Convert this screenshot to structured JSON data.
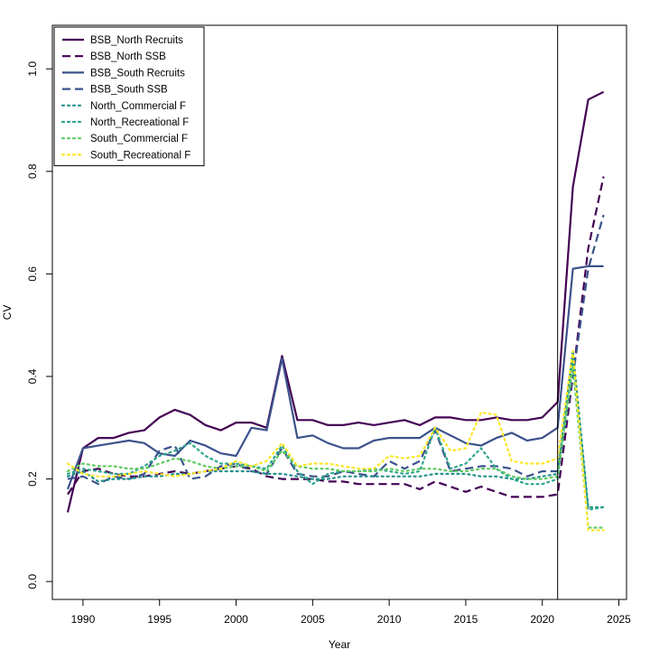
{
  "chart_data": {
    "type": "line",
    "title": "",
    "xlabel": "Year",
    "ylabel": "CV",
    "xlim": [
      1988,
      2025.5
    ],
    "ylim": [
      -0.035,
      1.085
    ],
    "xticks": [
      1990,
      1995,
      2000,
      2005,
      2010,
      2015,
      2020,
      2025
    ],
    "yticks": [
      0.0,
      0.2,
      0.4,
      0.6,
      0.8,
      1.0
    ],
    "ytick_labels": [
      "0.0",
      "0.2",
      "0.4",
      "0.6",
      "0.8",
      "1.0"
    ],
    "vline_x": 2021,
    "grid": false,
    "legend_position": "top-left",
    "x": [
      1989,
      1990,
      1991,
      1992,
      1993,
      1994,
      1995,
      1996,
      1997,
      1998,
      1999,
      2000,
      2001,
      2002,
      2003,
      2004,
      2005,
      2006,
      2007,
      2008,
      2009,
      2010,
      2011,
      2012,
      2013,
      2014,
      2015,
      2016,
      2017,
      2018,
      2019,
      2020,
      2021,
      2022,
      2023,
      2024
    ],
    "series": [
      {
        "name": "BSB_North Recruits",
        "color": "#440154",
        "dash": "solid",
        "values": [
          0.135,
          0.26,
          0.28,
          0.28,
          0.29,
          0.295,
          0.32,
          0.335,
          0.325,
          0.305,
          0.295,
          0.31,
          0.31,
          0.3,
          0.44,
          0.315,
          0.315,
          0.305,
          0.305,
          0.31,
          0.305,
          0.31,
          0.315,
          0.305,
          0.32,
          0.32,
          0.315,
          0.315,
          0.32,
          0.315,
          0.315,
          0.32,
          0.35,
          0.77,
          0.94,
          0.955
        ]
      },
      {
        "name": "BSB_North SSB",
        "color": "#440154",
        "dash": "dashed",
        "values": [
          0.17,
          0.215,
          0.22,
          0.21,
          0.205,
          0.205,
          0.21,
          0.215,
          0.21,
          0.215,
          0.22,
          0.225,
          0.22,
          0.205,
          0.2,
          0.2,
          0.2,
          0.195,
          0.195,
          0.19,
          0.19,
          0.19,
          0.19,
          0.18,
          0.195,
          0.185,
          0.175,
          0.185,
          0.175,
          0.165,
          0.165,
          0.165,
          0.17,
          0.4,
          0.65,
          0.79
        ]
      },
      {
        "name": "BSB_South Recruits",
        "color": "#3b528b",
        "dash": "solid",
        "values": [
          0.18,
          0.26,
          0.265,
          0.27,
          0.275,
          0.27,
          0.25,
          0.245,
          0.275,
          0.265,
          0.25,
          0.245,
          0.3,
          0.295,
          0.435,
          0.28,
          0.285,
          0.27,
          0.26,
          0.26,
          0.275,
          0.28,
          0.28,
          0.28,
          0.3,
          0.285,
          0.27,
          0.265,
          0.28,
          0.29,
          0.275,
          0.28,
          0.3,
          0.61,
          0.615,
          0.615
        ]
      },
      {
        "name": "BSB_South SSB",
        "color": "#3b528b",
        "dash": "dashed",
        "values": [
          0.2,
          0.205,
          0.19,
          0.205,
          0.2,
          0.21,
          0.255,
          0.265,
          0.2,
          0.205,
          0.225,
          0.23,
          0.215,
          0.21,
          0.26,
          0.21,
          0.205,
          0.205,
          0.215,
          0.21,
          0.205,
          0.235,
          0.22,
          0.235,
          0.295,
          0.215,
          0.22,
          0.225,
          0.225,
          0.22,
          0.205,
          0.215,
          0.215,
          0.4,
          0.61,
          0.715
        ]
      },
      {
        "name": "North_Commercial F",
        "color": "#21908c",
        "dash": "dotted",
        "values": [
          0.205,
          0.215,
          0.195,
          0.2,
          0.2,
          0.205,
          0.205,
          0.21,
          0.21,
          0.215,
          0.215,
          0.215,
          0.215,
          0.21,
          0.21,
          0.205,
          0.2,
          0.2,
          0.205,
          0.205,
          0.205,
          0.205,
          0.205,
          0.205,
          0.21,
          0.21,
          0.21,
          0.205,
          0.205,
          0.2,
          0.2,
          0.205,
          0.21,
          0.45,
          0.145,
          0.145
        ]
      },
      {
        "name": "North_Recreational F",
        "color": "#2ca58d",
        "dash": "dotted",
        "values": [
          0.21,
          0.22,
          0.215,
          0.21,
          0.21,
          0.225,
          0.245,
          0.255,
          0.27,
          0.245,
          0.23,
          0.23,
          0.225,
          0.22,
          0.265,
          0.215,
          0.19,
          0.21,
          0.215,
          0.215,
          0.22,
          0.215,
          0.21,
          0.215,
          0.3,
          0.22,
          0.23,
          0.26,
          0.22,
          0.2,
          0.19,
          0.19,
          0.2,
          0.43,
          0.14,
          0.145
        ]
      },
      {
        "name": "South_Commercial F",
        "color": "#5ec962",
        "dash": "dotted",
        "values": [
          0.215,
          0.23,
          0.225,
          0.225,
          0.22,
          0.22,
          0.23,
          0.24,
          0.235,
          0.225,
          0.22,
          0.225,
          0.225,
          0.215,
          0.255,
          0.225,
          0.22,
          0.22,
          0.215,
          0.215,
          0.215,
          0.22,
          0.215,
          0.22,
          0.22,
          0.215,
          0.215,
          0.22,
          0.22,
          0.205,
          0.2,
          0.2,
          0.205,
          0.42,
          0.105,
          0.105
        ]
      },
      {
        "name": "South_Recreational F",
        "color": "#fde725",
        "dash": "dotted",
        "values": [
          0.23,
          0.21,
          0.205,
          0.205,
          0.21,
          0.215,
          0.21,
          0.205,
          0.21,
          0.215,
          0.22,
          0.235,
          0.225,
          0.235,
          0.27,
          0.225,
          0.23,
          0.23,
          0.225,
          0.22,
          0.22,
          0.245,
          0.24,
          0.245,
          0.3,
          0.255,
          0.26,
          0.33,
          0.325,
          0.235,
          0.23,
          0.23,
          0.24,
          0.45,
          0.1,
          0.1
        ]
      }
    ]
  }
}
